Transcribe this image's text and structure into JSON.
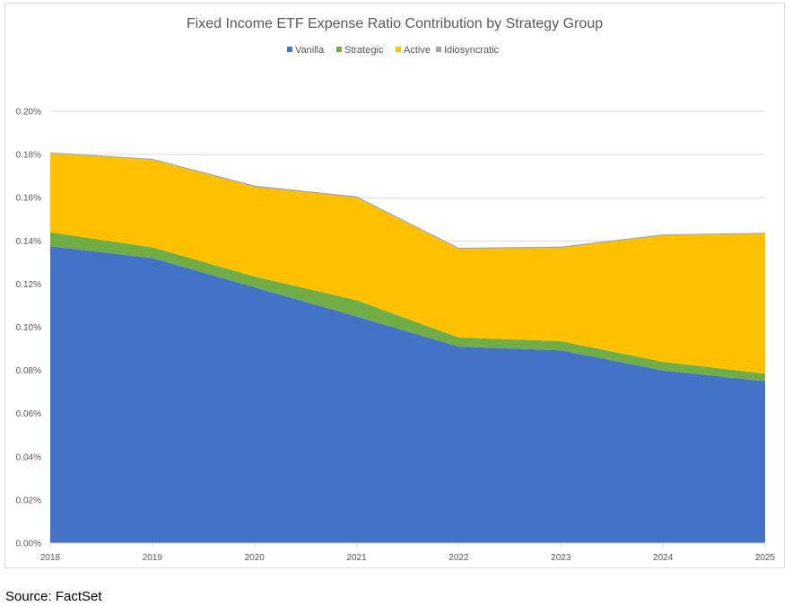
{
  "chart_data": {
    "type": "area",
    "stacked": true,
    "title": "Fixed Income ETF Expense Ratio Contribution by Strategy Group",
    "xlabel": "",
    "ylabel": "",
    "categories": [
      "2018",
      "2019",
      "2020",
      "2021",
      "2022",
      "2023",
      "2024",
      "2025"
    ],
    "ylim": [
      0,
      0.2
    ],
    "yticks": [
      "0.00%",
      "0.02%",
      "0.04%",
      "0.06%",
      "0.08%",
      "0.10%",
      "0.12%",
      "0.14%",
      "0.16%",
      "0.18%",
      "0.20%"
    ],
    "grid": true,
    "legend_position": "top",
    "series": [
      {
        "name": "Vanilla",
        "color": "#4472c4",
        "values": [
          0.1375,
          0.132,
          0.1185,
          0.105,
          0.091,
          0.0893,
          0.08,
          0.075
        ]
      },
      {
        "name": "Strategic",
        "color": "#70ad47",
        "values": [
          0.0065,
          0.005,
          0.005,
          0.0075,
          0.0042,
          0.0043,
          0.004,
          0.0035
        ]
      },
      {
        "name": "Active",
        "color": "#ffc000",
        "values": [
          0.0365,
          0.0405,
          0.0415,
          0.0475,
          0.041,
          0.0432,
          0.0585,
          0.0648
        ]
      },
      {
        "name": "Idiosyncratic",
        "color": "#a5a5a5",
        "values": [
          0.0005,
          0.0005,
          0.0006,
          0.0006,
          0.0006,
          0.0006,
          0.0005,
          0.0005
        ]
      }
    ]
  },
  "source": "Source: FactSet"
}
